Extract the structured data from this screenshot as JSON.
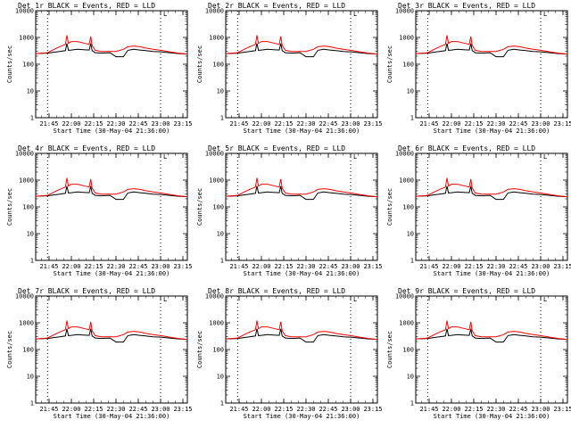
{
  "panels": [
    {
      "title": "Det 1r BLACK = Events, RED = LLD",
      "ylabel": "Counts/sec",
      "xlabel": "Start Time (30-May-04 21:36:00)",
      "corner_label": "L"
    },
    {
      "title": "Det 2r BLACK = Events, RED = LLD",
      "ylabel": "Counts/sec",
      "xlabel": "Start Time (30-May-04 21:36:00)",
      "corner_label": "L"
    },
    {
      "title": "Det 3r BLACK = Events, RED = LLD",
      "ylabel": "Counts/sec",
      "xlabel": "Start Time (30-May-04 21:36:00)",
      "corner_label": "L"
    },
    {
      "title": "Det 4r BLACK = Events, RED = LLD",
      "ylabel": "Counts/sec",
      "xlabel": "Start Time (30-May-04 21:36:00)",
      "corner_label": "L"
    },
    {
      "title": "Det 5r BLACK = Events, RED = LLD",
      "ylabel": "Counts/sec",
      "xlabel": "Start Time (30-May-04 21:36:00)",
      "corner_label": "L"
    },
    {
      "title": "Det 6r BLACK = Events, RED = LLD",
      "ylabel": "Counts/sec",
      "xlabel": "Start Time (30-May-04 21:36:00)",
      "corner_label": "L"
    },
    {
      "title": "Det 7r BLACK = Events, RED = LLD",
      "ylabel": "Counts/sec",
      "xlabel": "Start Time (30-May-04 21:36:00)",
      "corner_label": "L"
    },
    {
      "title": "Det 8r BLACK = Events, RED = LLD",
      "ylabel": "Counts/sec",
      "xlabel": "Start Time (30-May-04 21:36:00)",
      "corner_label": "L"
    },
    {
      "title": "Det 9r BLACK = Events, RED = LLD",
      "ylabel": "Counts/sec",
      "xlabel": "Start Time (30-May-04 21:36:00)",
      "corner_label": "L"
    }
  ],
  "chart_data": {
    "type": "line",
    "layout": "3x3 grid of identical-format panels",
    "y_scale": "log",
    "ylim": [
      1,
      10000
    ],
    "y_ticks": [
      "1",
      "10",
      "100",
      "1000",
      "10000"
    ],
    "x_ticks": [
      "21:45",
      "22:00",
      "22:15",
      "22:30",
      "22:45",
      "23:00",
      "23:15"
    ],
    "xlim": [
      "21:36",
      "23:18"
    ],
    "dotted_vertical_lines": [
      "21:44",
      "23:00"
    ],
    "series_colors": {
      "Events": "#000000",
      "LLD": "#ff0000"
    },
    "x": [
      "21:36",
      "21:44",
      "21:48",
      "21:52",
      "21:56",
      "21:57",
      "21:58",
      "22:00",
      "22:04",
      "22:08",
      "22:12",
      "22:13",
      "22:14",
      "22:16",
      "22:20",
      "22:26",
      "22:30",
      "22:35",
      "22:38",
      "22:42",
      "22:46",
      "22:50",
      "22:55",
      "23:00",
      "23:06",
      "23:12",
      "23:18"
    ],
    "series": [
      {
        "name": "Events",
        "values": [
          250,
          260,
          280,
          300,
          320,
          600,
          330,
          340,
          360,
          350,
          340,
          600,
          320,
          270,
          260,
          270,
          190,
          190,
          330,
          360,
          340,
          320,
          300,
          290,
          270,
          250,
          240
        ]
      },
      {
        "name": "LLD",
        "values": [
          250,
          270,
          350,
          450,
          550,
          1200,
          600,
          700,
          700,
          620,
          550,
          1100,
          500,
          330,
          300,
          300,
          300,
          360,
          450,
          480,
          450,
          400,
          360,
          330,
          290,
          260,
          240
        ]
      }
    ]
  }
}
